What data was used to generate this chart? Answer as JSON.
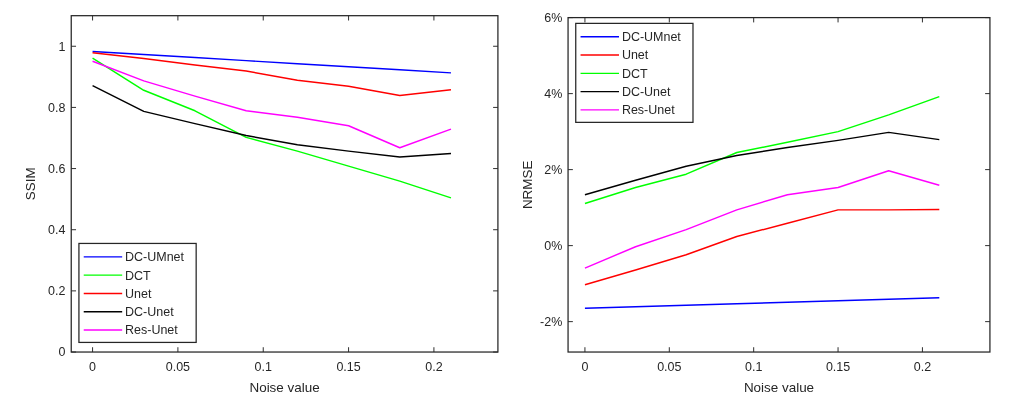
{
  "chart_data": [
    {
      "type": "line",
      "xlabel": "Noise value",
      "ylabel": "SSIM",
      "x": [
        0,
        0.03,
        0.06,
        0.09,
        0.12,
        0.15,
        0.18,
        0.21
      ],
      "xlim": [
        -0.0125,
        0.2375
      ],
      "xticks": [
        0,
        0.05,
        0.1,
        0.15,
        0.2
      ],
      "ylim": [
        0,
        1.1
      ],
      "yticks": [
        0,
        0.2,
        0.4,
        0.6,
        0.8,
        1
      ],
      "legend": "bottom left",
      "grid": false,
      "series": [
        {
          "name": "DC-UMnet",
          "color": "#0000ff",
          "values": [
            0.983,
            0.973,
            0.963,
            0.953,
            0.943,
            0.933,
            0.923,
            0.913
          ]
        },
        {
          "name": "DCT",
          "color": "#00ff00",
          "values": [
            0.961,
            0.856,
            0.789,
            0.702,
            0.657,
            0.608,
            0.559,
            0.504
          ]
        },
        {
          "name": "Unet",
          "color": "#ff0000",
          "values": [
            0.979,
            0.96,
            0.939,
            0.919,
            0.889,
            0.869,
            0.839,
            0.858
          ]
        },
        {
          "name": "DC-Unet",
          "color": "#000000",
          "values": [
            0.871,
            0.787,
            0.747,
            0.708,
            0.678,
            0.657,
            0.638,
            0.649
          ]
        },
        {
          "name": "Res-Unet",
          "color": "#ff00ff",
          "values": [
            0.951,
            0.887,
            0.837,
            0.789,
            0.768,
            0.74,
            0.668,
            0.729
          ]
        }
      ]
    },
    {
      "type": "line",
      "xlabel": "Noise value",
      "ylabel": "NRMSE",
      "x": [
        0,
        0.03,
        0.06,
        0.09,
        0.12,
        0.15,
        0.18,
        0.21
      ],
      "xlim": [
        -0.01,
        0.24
      ],
      "xticks": [
        0,
        0.05,
        0.1,
        0.15,
        0.2
      ],
      "ylim": [
        -2.8,
        6
      ],
      "yticks": [
        {
          "value": -2,
          "label": "-2%"
        },
        {
          "value": 0,
          "label": "0%"
        },
        {
          "value": 2,
          "label": "2%"
        },
        {
          "value": 4,
          "label": "4%"
        },
        {
          "value": 6,
          "label": "6%"
        }
      ],
      "legend": "top left",
      "grid": false,
      "series": [
        {
          "name": "DC-UMnet",
          "color": "#0000ff",
          "values": [
            -1.65,
            -1.61,
            -1.57,
            -1.53,
            -1.49,
            -1.45,
            -1.41,
            -1.37
          ]
        },
        {
          "name": "Unet",
          "color": "#ff0000",
          "values": [
            -1.03,
            -0.64,
            -0.24,
            0.24,
            0.59,
            0.94,
            0.94,
            0.95
          ]
        },
        {
          "name": "DCT",
          "color": "#00ff00",
          "values": [
            1.11,
            1.53,
            1.88,
            2.45,
            2.72,
            3.0,
            3.44,
            3.92
          ]
        },
        {
          "name": "DC-Unet",
          "color": "#000000",
          "values": [
            1.34,
            1.72,
            2.09,
            2.37,
            2.58,
            2.77,
            2.98,
            2.79
          ]
        },
        {
          "name": "Res-Unet",
          "color": "#ff00ff",
          "values": [
            -0.59,
            -0.03,
            0.42,
            0.94,
            1.34,
            1.53,
            1.97,
            1.59
          ]
        }
      ]
    }
  ]
}
